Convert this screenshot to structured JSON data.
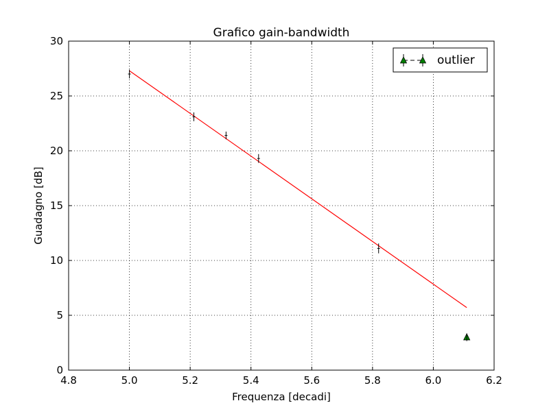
{
  "chart_data": {
    "type": "scatter",
    "title": "Grafico gain-bandwidth",
    "xlabel": "Frequenza [decadi]",
    "ylabel": "Guadagno [dB]",
    "xlim": [
      4.8,
      6.2
    ],
    "ylim": [
      0,
      30
    ],
    "xticks": [
      "4.8",
      "5.0",
      "5.2",
      "5.4",
      "5.6",
      "5.8",
      "6.0",
      "6.2"
    ],
    "yticks": [
      "0",
      "5",
      "10",
      "15",
      "20",
      "25",
      "30"
    ],
    "grid": true,
    "legend_position": "top-right",
    "points": [
      {
        "x": 5.0,
        "y": 27.0,
        "yerr": 0.4
      },
      {
        "x": 5.212,
        "y": 23.1,
        "yerr": 0.4
      },
      {
        "x": 5.318,
        "y": 21.4,
        "yerr": 0.35
      },
      {
        "x": 5.425,
        "y": 19.3,
        "yerr": 0.4
      },
      {
        "x": 5.82,
        "y": 11.1,
        "yerr": 0.45
      }
    ],
    "outlier_series": {
      "name": "outlier",
      "marker": "triangle",
      "color": "#008000",
      "points": [
        {
          "x": 6.11,
          "y": 3.0,
          "yerr": 0.35
        }
      ]
    },
    "fit_line": {
      "color": "#ff0000",
      "x": [
        5.0,
        6.11
      ],
      "y": [
        27.3,
        5.7
      ]
    }
  }
}
